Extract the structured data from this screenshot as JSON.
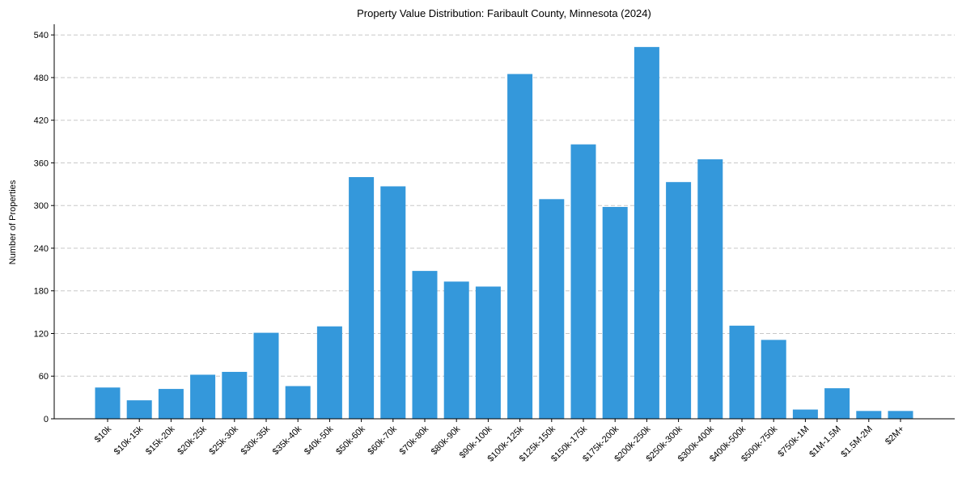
{
  "chart_data": {
    "type": "bar",
    "title": "Property Value Distribution: Faribault County, Minnesota (2024)",
    "xlabel": "",
    "ylabel": "Number of Properties",
    "ylim": [
      0,
      555
    ],
    "yticks": [
      0,
      60,
      120,
      180,
      240,
      300,
      360,
      420,
      480,
      540
    ],
    "grid": true,
    "bar_color": "#3498db",
    "categories": [
      "$10k",
      "$10k-15k",
      "$15k-20k",
      "$20k-25k",
      "$25k-30k",
      "$30k-35k",
      "$35k-40k",
      "$40k-50k",
      "$50k-60k",
      "$60k-70k",
      "$70k-80k",
      "$80k-90k",
      "$90k-100k",
      "$100k-125k",
      "$125k-150k",
      "$150k-175k",
      "$175k-200k",
      "$200k-250k",
      "$250k-300k",
      "$300k-400k",
      "$400k-500k",
      "$500k-750k",
      "$750k-1M",
      "$1M-1.5M",
      "$1.5M-2M",
      "$2M+"
    ],
    "values": [
      44,
      26,
      42,
      62,
      66,
      121,
      46,
      130,
      340,
      327,
      208,
      193,
      186,
      485,
      309,
      386,
      298,
      523,
      333,
      365,
      131,
      111,
      13,
      43,
      11,
      11
    ]
  }
}
